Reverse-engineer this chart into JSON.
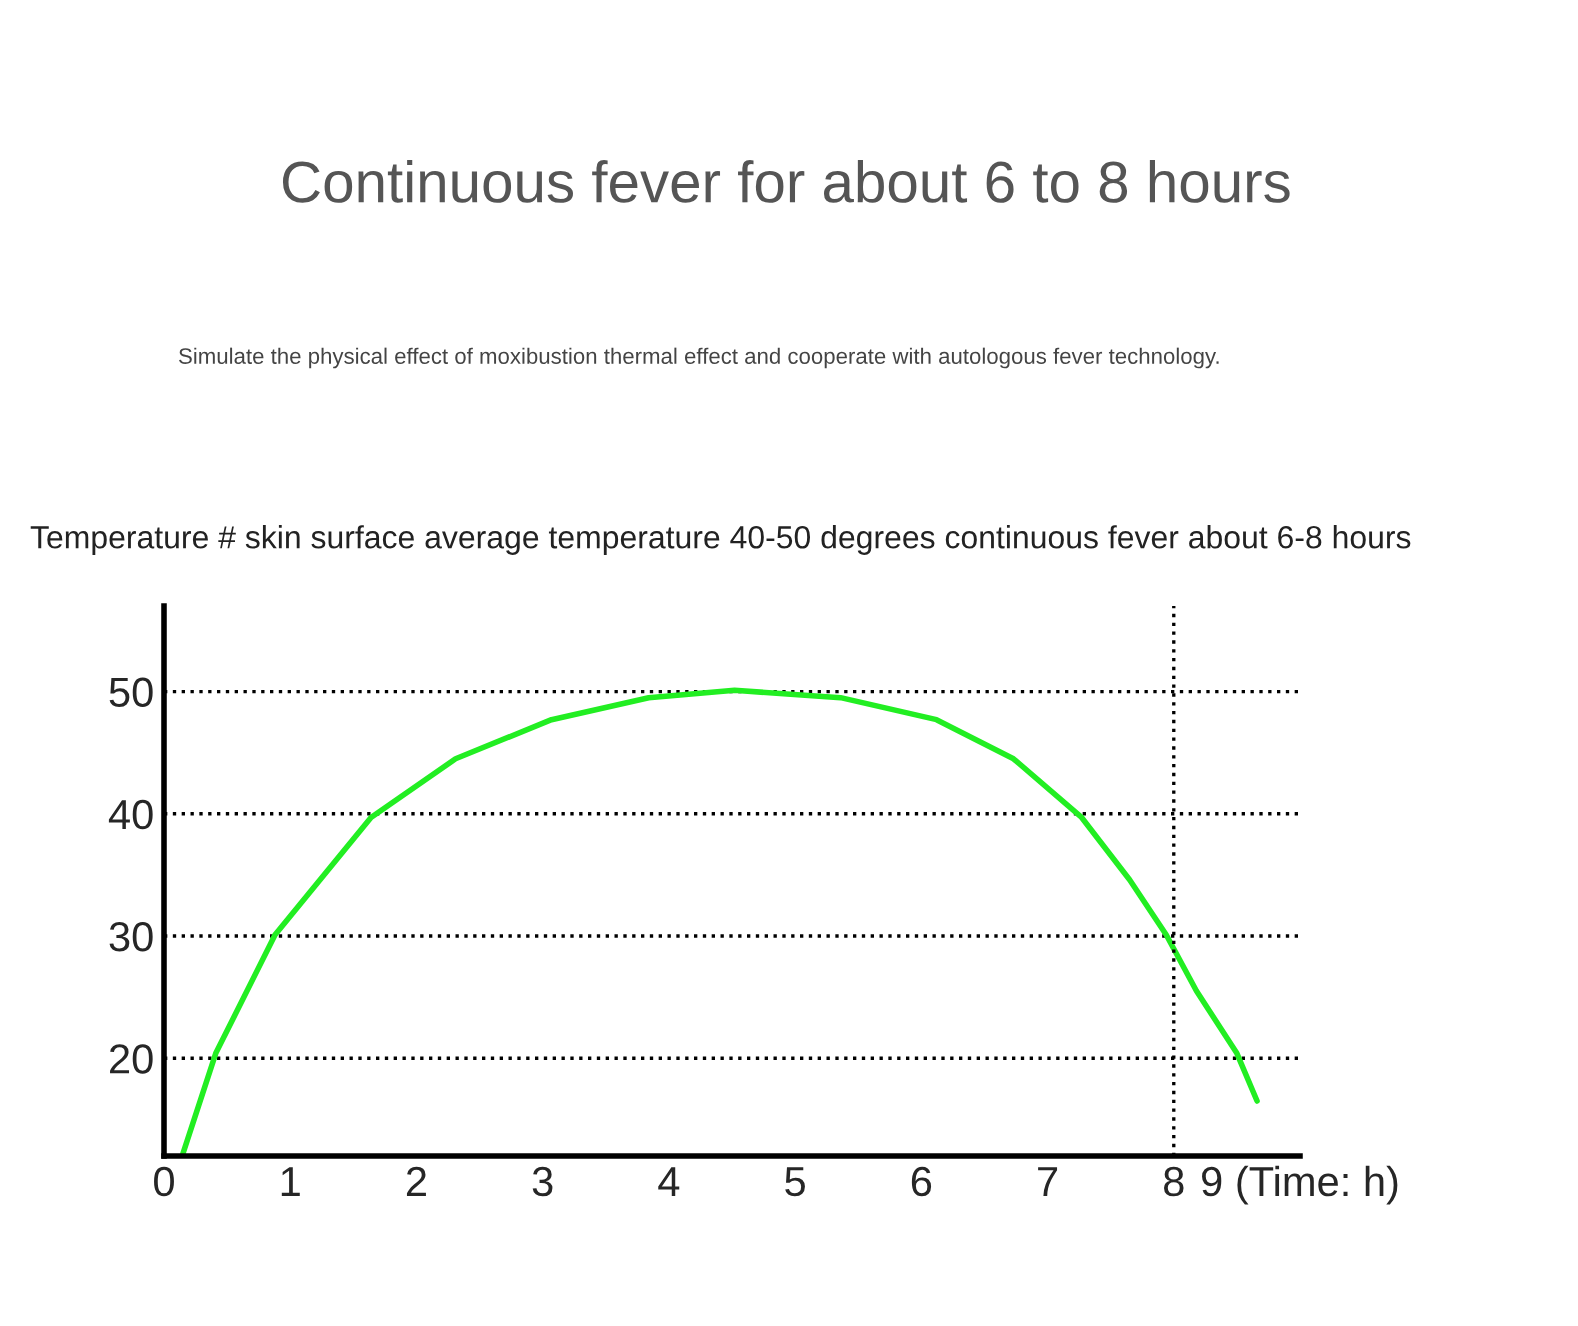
{
  "chart_data": {
    "type": "line",
    "title": "Continuous fever for about 6 to 8 hours",
    "subtitle": "Simulate the physical effect of moxibustion thermal effect and cooperate with autologous fever technology.",
    "ylabel": "Temperature # skin surface average temperature 40-50 degrees continuous fever about 6-8 hours",
    "x": [
      0.15,
      0.41,
      0.88,
      1.64,
      2.31,
      3.07,
      3.84,
      4.52,
      5.36,
      6.12,
      6.73,
      7.27,
      7.65,
      7.94,
      8.18,
      8.5,
      8.66
    ],
    "series": [
      {
        "color": "#22ee22",
        "values": [
          12.2,
          20.4,
          30.1,
          39.7,
          44.5,
          47.7,
          49.5,
          50.1,
          49.5,
          47.7,
          44.5,
          39.7,
          34.6,
          30.1,
          25.5,
          20.4,
          16.5
        ]
      }
    ],
    "xlim": [
      0,
      9
    ],
    "xticks": [
      0,
      1,
      2,
      3,
      4,
      5,
      6,
      7,
      8,
      {
        "value": 9,
        "label": "9 (Time: h)"
      }
    ],
    "ylim": [
      12,
      57
    ],
    "yticks": [
      20,
      30,
      40,
      50
    ],
    "grid": "y",
    "marker": "none",
    "line_style": "solid",
    "ref_lines": [
      {
        "axis": "x",
        "value": 8,
        "color": "#000000",
        "line_style": "dotted"
      }
    ]
  }
}
